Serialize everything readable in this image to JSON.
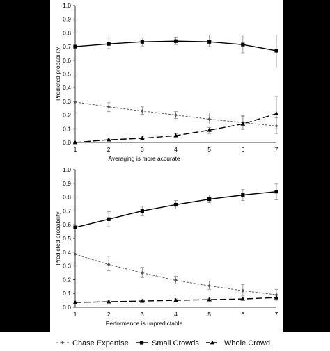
{
  "chart_data": [
    {
      "type": "line",
      "xlabel": "Averaging is more accurate",
      "ylabel": "Predicted probability",
      "x": [
        1,
        2,
        3,
        4,
        5,
        6,
        7
      ],
      "xticks": [
        "1",
        "2",
        "3",
        "4",
        "5",
        "6",
        "7"
      ],
      "ylim": [
        0,
        1
      ],
      "yticks": [
        "0.0",
        "0.1",
        "0.2",
        "0.3",
        "0.4",
        "0.5",
        "0.6",
        "0.7",
        "0.8",
        "0.9",
        "1.0"
      ],
      "grid": false,
      "series": [
        {
          "name": "Chase Expertise",
          "marker": "diamond",
          "dash": "fine",
          "color": "#555555",
          "values": [
            0.295,
            0.26,
            0.23,
            0.2,
            0.17,
            0.145,
            0.12
          ],
          "err_low": [
            0.295,
            0.225,
            0.205,
            0.175,
            0.135,
            0.1,
            0.065
          ],
          "err_high": [
            0.295,
            0.29,
            0.26,
            0.225,
            0.215,
            0.19,
            0.18
          ]
        },
        {
          "name": "Small Crowds",
          "marker": "square",
          "dash": "solid",
          "color": "#000000",
          "values": [
            0.7,
            0.72,
            0.735,
            0.74,
            0.735,
            0.715,
            0.67
          ],
          "err_low": [
            0.7,
            0.685,
            0.705,
            0.715,
            0.7,
            0.655,
            0.55
          ],
          "err_high": [
            0.7,
            0.765,
            0.765,
            0.77,
            0.785,
            0.785,
            0.785
          ]
        },
        {
          "name": "Whole Crowd",
          "marker": "triangle",
          "dash": "long",
          "color": "#000000",
          "values": [
            0.0,
            0.02,
            0.03,
            0.05,
            0.09,
            0.135,
            0.21
          ],
          "err_low": [
            0.0,
            0.015,
            0.025,
            0.04,
            0.065,
            0.095,
            0.1
          ],
          "err_high": [
            0.0,
            0.025,
            0.045,
            0.065,
            0.11,
            0.195,
            0.335
          ]
        }
      ]
    },
    {
      "type": "line",
      "xlabel": "Performance is unpredictable",
      "ylabel": "Predicted probability",
      "x": [
        1,
        2,
        3,
        4,
        5,
        6,
        7
      ],
      "xticks": [
        "1",
        "2",
        "3",
        "4",
        "5",
        "6",
        "7"
      ],
      "ylim": [
        0,
        1
      ],
      "yticks": [
        "0.0",
        "0.1",
        "0.2",
        "0.3",
        "0.4",
        "0.5",
        "0.6",
        "0.7",
        "0.8",
        "0.9",
        "1.0"
      ],
      "grid": false,
      "series": [
        {
          "name": "Chase Expertise",
          "marker": "diamond",
          "dash": "fine",
          "color": "#555555",
          "values": [
            0.385,
            0.31,
            0.25,
            0.195,
            0.155,
            0.12,
            0.09
          ],
          "err_low": [
            0.385,
            0.265,
            0.215,
            0.17,
            0.13,
            0.085,
            0.05
          ],
          "err_high": [
            0.385,
            0.37,
            0.29,
            0.225,
            0.19,
            0.165,
            0.13
          ]
        },
        {
          "name": "Small Crowds",
          "marker": "square",
          "dash": "solid",
          "color": "#000000",
          "values": [
            0.58,
            0.64,
            0.7,
            0.745,
            0.785,
            0.815,
            0.84
          ],
          "err_low": [
            0.58,
            0.585,
            0.665,
            0.715,
            0.76,
            0.775,
            0.78
          ],
          "err_high": [
            0.58,
            0.695,
            0.735,
            0.775,
            0.815,
            0.855,
            0.895
          ]
        },
        {
          "name": "Whole Crowd",
          "marker": "triangle",
          "dash": "long",
          "color": "#000000",
          "values": [
            0.035,
            0.04,
            0.045,
            0.05,
            0.055,
            0.06,
            0.07
          ],
          "err_low": [
            0.035,
            0.03,
            0.04,
            0.045,
            0.05,
            0.05,
            0.055
          ],
          "err_high": [
            0.035,
            0.05,
            0.055,
            0.06,
            0.065,
            0.075,
            0.085
          ]
        }
      ]
    }
  ],
  "legend": {
    "placement": "bottom",
    "items": [
      "Chase Expertise",
      "Small Crowds",
      "Whole Crowd"
    ]
  }
}
